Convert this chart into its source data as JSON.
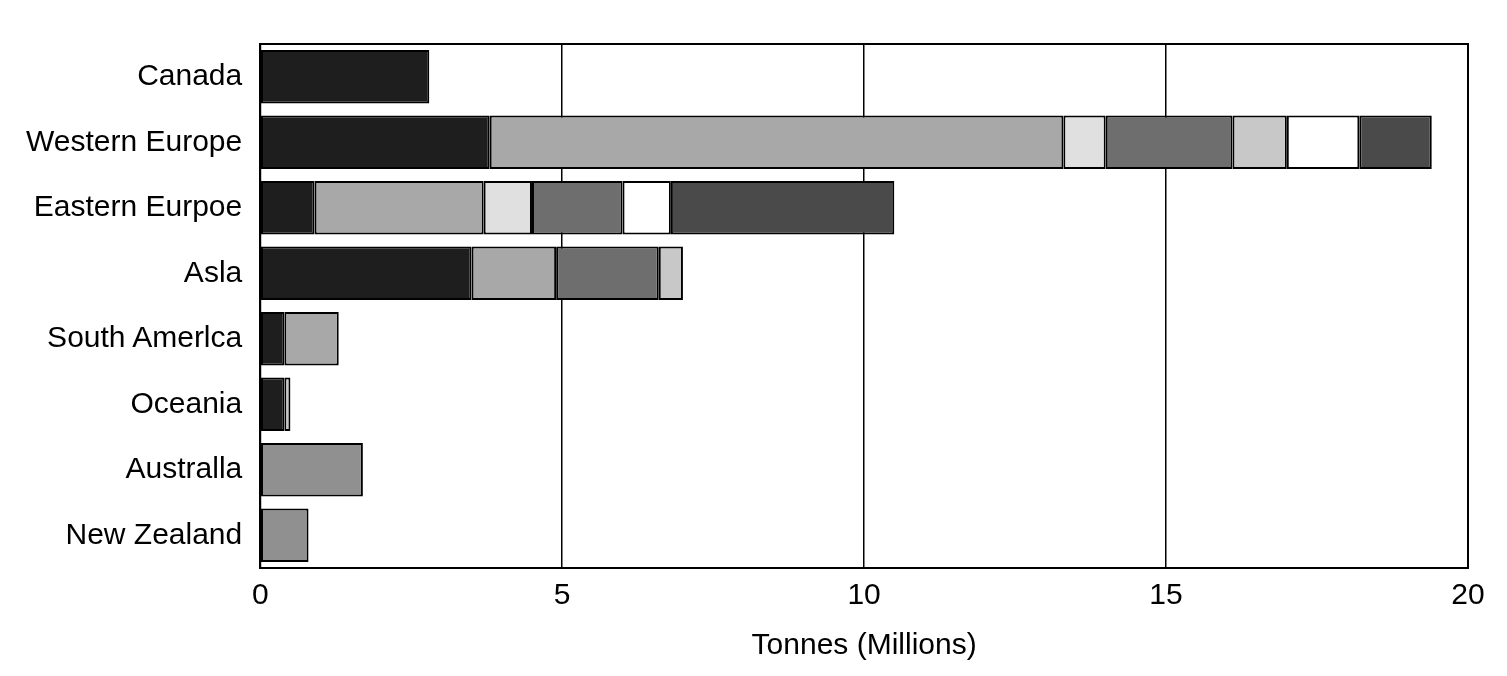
{
  "chart_data": {
    "type": "bar",
    "orientation": "horizontal",
    "stacked": true,
    "xlabel": "Tonnes (Millions)",
    "categories": [
      "Canada",
      "Western Europe",
      "Eastern Eurpoe",
      "Asla",
      "South Amerlca",
      "Oceania",
      "Australla",
      "New Zealand"
    ],
    "xlim": [
      0,
      20
    ],
    "xticks": [
      0,
      5,
      10,
      15,
      20
    ],
    "grid": "x",
    "legend": false,
    "series": [
      {
        "color": "#1e1e1e",
        "values": [
          2.8,
          3.8,
          0.9,
          3.5,
          0.4,
          0.4,
          null,
          null
        ]
      },
      {
        "color": "#a8a8a8",
        "values": [
          null,
          9.5,
          2.8,
          1.4,
          0.9,
          null,
          null,
          null
        ]
      },
      {
        "color": "#e0e0e0",
        "values": [
          null,
          0.7,
          0.8,
          null,
          null,
          null,
          null,
          null
        ]
      },
      {
        "color": "#6e6e6e",
        "values": [
          null,
          2.1,
          1.5,
          1.7,
          null,
          null,
          null,
          null
        ]
      },
      {
        "color": "#c8c8c8",
        "values": [
          null,
          0.9,
          null,
          0.4,
          null,
          0.1,
          null,
          null
        ]
      },
      {
        "color": "#ffffff",
        "values": [
          null,
          1.2,
          0.8,
          null,
          null,
          null,
          null,
          null
        ]
      },
      {
        "color": "#4a4a4a",
        "values": [
          null,
          1.2,
          3.7,
          null,
          null,
          null,
          null,
          null
        ]
      },
      {
        "color": "#909090",
        "values": [
          null,
          null,
          null,
          null,
          null,
          null,
          1.7,
          0.8
        ]
      }
    ]
  }
}
